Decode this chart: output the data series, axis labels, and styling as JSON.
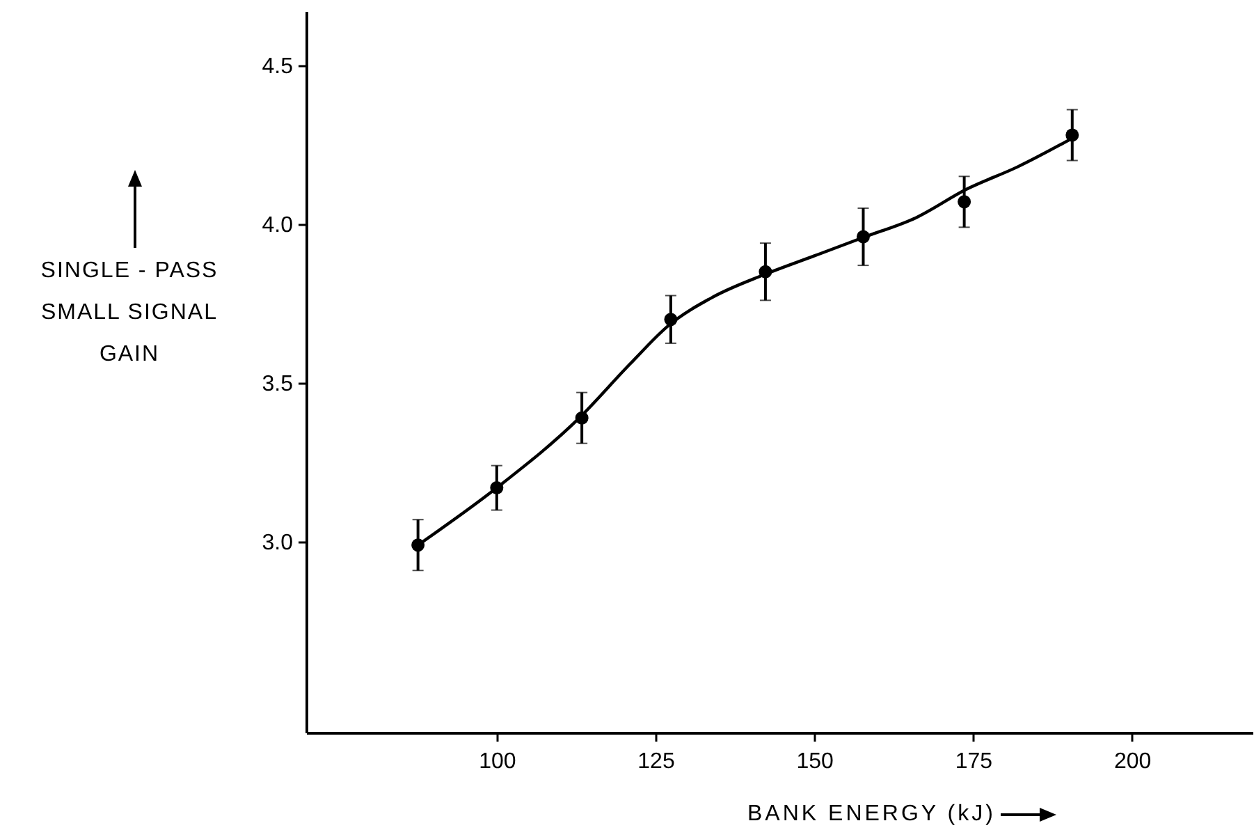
{
  "chart_data": {
    "type": "scatter",
    "xlabel": "BANK ENERGY (kJ)",
    "ylabel": "SINGLE - PASS SMALL SIGNAL GAIN",
    "xlim": [
      70,
      219
    ],
    "xticks": [
      100,
      125,
      150,
      175,
      200
    ],
    "ylim": [
      2.4,
      4.67
    ],
    "yticks": [
      {
        "value": 3,
        "label": "3.0"
      },
      {
        "value": 3.5,
        "label": "3.5"
      },
      {
        "value": 4,
        "label": "4.0"
      },
      {
        "value": 4.5,
        "label": "4.5"
      }
    ],
    "series": [
      {
        "color": "#000000",
        "marker": "circle",
        "x": [
          87.6,
          100,
          113.4,
          127.4,
          142.3,
          157.7,
          173.6,
          190.6
        ],
        "values": [
          2.99,
          3.17,
          3.39,
          3.7,
          3.85,
          3.96,
          4.07,
          4.28
        ],
        "errors": [
          0.08,
          0.07,
          0.08,
          0.075,
          0.09,
          0.09,
          0.08,
          0.08
        ]
      },
      {
        "type": "line",
        "color": "#000000",
        "x": [
          87.6,
          100,
          113,
          121,
          127,
          134,
          142,
          150,
          158,
          166,
          174,
          182,
          190.6
        ],
        "values": [
          2.99,
          3.17,
          3.39,
          3.56,
          3.68,
          3.77,
          3.84,
          3.9,
          3.96,
          4.02,
          4.11,
          4.18,
          4.27
        ]
      }
    ]
  }
}
